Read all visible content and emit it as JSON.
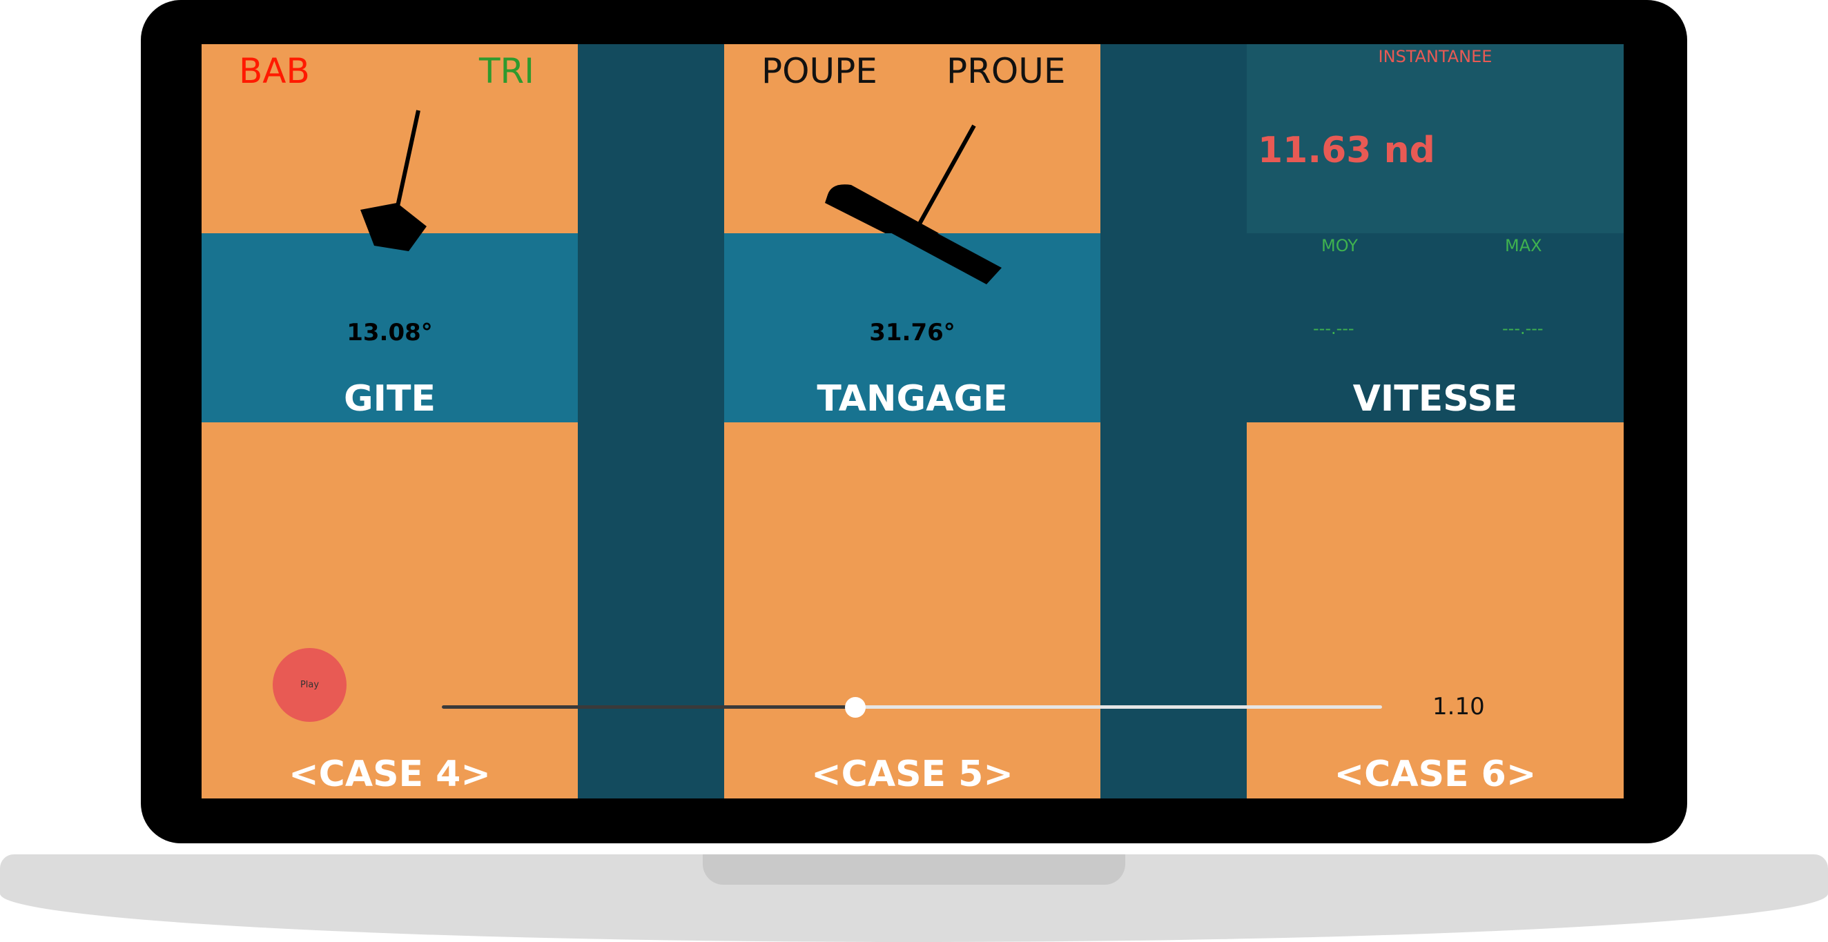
{
  "gite": {
    "left_label": "BAB",
    "right_label": "TRI",
    "value": "13.08°",
    "title": "GITE",
    "case_label": "<CASE 4>"
  },
  "tangage": {
    "left_label": "POUPE",
    "right_label": "PROUE",
    "value": "31.76°",
    "title": "TANGAGE",
    "case_label": "<CASE 5>"
  },
  "vitesse": {
    "instant_label": "INSTANTANEE",
    "instant_value": "11.63 nd",
    "avg_label": "MOY",
    "max_label": "MAX",
    "avg_value": "---.---",
    "max_value": "---.---",
    "title": "VITESSE",
    "case_label": "<CASE 6>"
  },
  "controls": {
    "play_label": "Play",
    "slider_position": 0.44,
    "slider_value": "1.10"
  },
  "colors": {
    "orange": "#ef9c53",
    "teal": "#187390",
    "dark": "#134b5e",
    "bab_red": "#ff1a00",
    "tri_green": "#2e9a2e",
    "speed_red": "#e85a54",
    "speed_green": "#3fb24f"
  }
}
